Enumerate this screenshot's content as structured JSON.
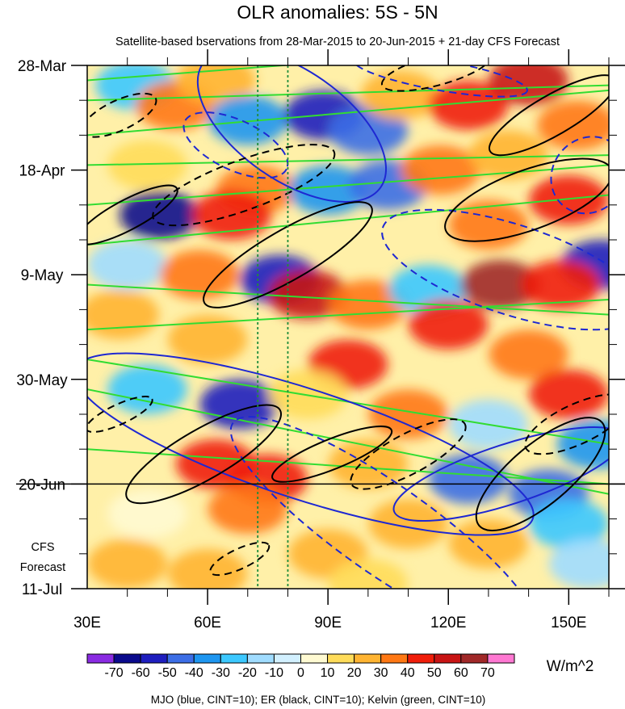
{
  "chart_data": {
    "type": "heatmap",
    "title": "OLR anomalies: 5S - 5N",
    "subtitle": "Satellite-based bservations from 28-Mar-2015 to 20-Jun-2015 + 21-day CFS Forecast",
    "x_ticks": [
      {
        "label": "30E",
        "lon": 30
      },
      {
        "label": "60E",
        "lon": 60
      },
      {
        "label": "90E",
        "lon": 90
      },
      {
        "label": "120E",
        "lon": 120
      },
      {
        "label": "150E",
        "lon": 150
      }
    ],
    "xlim": [
      30,
      160
    ],
    "y_ticks": [
      {
        "label": "28-Mar",
        "day": 0
      },
      {
        "label": "18-Apr",
        "day": 21
      },
      {
        "label": "9-May",
        "day": 42
      },
      {
        "label": "30-May",
        "day": 63
      },
      {
        "label": "20-Jun",
        "day": 84
      },
      {
        "label": "11-Jul",
        "day": 105
      }
    ],
    "ylim_days": [
      0,
      105
    ],
    "observation_end_day": 84,
    "forecast_label": [
      "CFS",
      "Forecast"
    ],
    "reference_longitudes": [
      72.5,
      80
    ],
    "colorbar": {
      "unit_label": "W/m^2",
      "tick_labels": [
        "-70",
        "-60",
        "-50",
        "-40",
        "-30",
        "-20",
        "-10",
        "0",
        "10",
        "20",
        "30",
        "40",
        "50",
        "60",
        "70"
      ],
      "colors": [
        "#8a2be2",
        "#0a0a8c",
        "#1e1ebe",
        "#3c6ee6",
        "#1e96f0",
        "#3cc8ff",
        "#a0dcff",
        "#d2f0ff",
        "#fffad2",
        "#ffdc5a",
        "#ffb432",
        "#ff7814",
        "#f01e0a",
        "#c81414",
        "#a02828",
        "#ff78d2"
      ]
    },
    "legend_text": "MJO (blue, CINT=10); ER (black, CINT=10); Kelvin (green, CINT=10)",
    "colors": {
      "mjo": "#1e28d2",
      "er": "#000000",
      "kelvin": "#32dc32",
      "reference": "#1e8c3c"
    },
    "kelvin_bands": [
      {
        "lon1": 30,
        "day1": 3,
        "lon2": 160,
        "day2": -5
      },
      {
        "lon1": 30,
        "day1": 7,
        "lon2": 160,
        "day2": 4
      },
      {
        "lon1": 30,
        "day1": 14,
        "lon2": 160,
        "day2": 5
      },
      {
        "lon1": 30,
        "day1": 20,
        "lon2": 160,
        "day2": 18
      },
      {
        "lon1": 30,
        "day1": 28,
        "lon2": 160,
        "day2": 20
      },
      {
        "lon1": 30,
        "day1": 36,
        "lon2": 160,
        "day2": 26
      },
      {
        "lon1": 30,
        "day1": 44,
        "lon2": 160,
        "day2": 50
      },
      {
        "lon1": 30,
        "day1": 53,
        "lon2": 160,
        "day2": 47
      },
      {
        "lon1": 30,
        "day1": 59,
        "lon2": 160,
        "day2": 76
      },
      {
        "lon1": 30,
        "day1": 65,
        "lon2": 160,
        "day2": 86
      },
      {
        "lon1": 30,
        "day1": 77,
        "lon2": 160,
        "day2": 84
      }
    ],
    "mjo_contours": [
      {
        "lon": 81,
        "day": 12,
        "rlon": 27,
        "rday": 11,
        "angle": 35,
        "dashed": false
      },
      {
        "lon": 67,
        "day": 16,
        "rlon": 14,
        "rday": 5,
        "angle": 25,
        "dashed": true
      },
      {
        "lon": 84,
        "day": 76,
        "rlon": 60,
        "rday": 11,
        "angle": 18,
        "dashed": false
      },
      {
        "lon": 136,
        "day": 41,
        "rlon": 34,
        "rday": 9,
        "angle": 18,
        "dashed": true
      },
      {
        "lon": 135,
        "day": 82,
        "rlon": 30,
        "rday": 6,
        "angle": -18,
        "dashed": false
      },
      {
        "lon": 104,
        "day": 93,
        "rlon": 46,
        "rday": 9,
        "angle": 35,
        "dashed": true
      },
      {
        "lon": 155,
        "day": 22,
        "rlon": 9,
        "rday": 8,
        "angle": 40,
        "dashed": true
      },
      {
        "lon": 118,
        "day": 2,
        "rlon": 22,
        "rday": 3,
        "angle": 10,
        "dashed": true
      }
    ],
    "er_contours": [
      {
        "lon": 40,
        "day": 30,
        "rlon": 14,
        "rday": 3,
        "angle": -28,
        "dashed": false
      },
      {
        "lon": 80,
        "day": 38,
        "rlon": 24,
        "rday": 5,
        "angle": -30,
        "dashed": false
      },
      {
        "lon": 69,
        "day": 24,
        "rlon": 24,
        "rday": 5,
        "angle": -20,
        "dashed": true
      },
      {
        "lon": 59,
        "day": 78,
        "rlon": 22,
        "rday": 5,
        "angle": -30,
        "dashed": false
      },
      {
        "lon": 140,
        "day": 27,
        "rlon": 22,
        "rday": 6,
        "angle": -20,
        "dashed": false
      },
      {
        "lon": 146,
        "day": 10,
        "rlon": 18,
        "rday": 4,
        "angle": -30,
        "dashed": false
      },
      {
        "lon": 143,
        "day": 82,
        "rlon": 20,
        "rday": 6,
        "angle": -40,
        "dashed": false
      },
      {
        "lon": 91,
        "day": 78,
        "rlon": 16,
        "rday": 3,
        "angle": -22,
        "dashed": false
      },
      {
        "lon": 38,
        "day": 10,
        "rlon": 10,
        "rday": 3,
        "angle": -25,
        "dashed": true
      },
      {
        "lon": 117,
        "day": 1,
        "rlon": 14,
        "rday": 3,
        "angle": -15,
        "dashed": true
      },
      {
        "lon": 68,
        "day": 99,
        "rlon": 8,
        "rday": 2,
        "angle": -25,
        "dashed": true
      },
      {
        "lon": 38,
        "day": 70,
        "rlon": 9,
        "rday": 2,
        "angle": -25,
        "dashed": true
      },
      {
        "lon": 110,
        "day": 78,
        "rlon": 16,
        "rday": 4,
        "angle": -28,
        "dashed": true
      },
      {
        "lon": 152,
        "day": 72,
        "rlon": 14,
        "rday": 4,
        "angle": -25,
        "dashed": true
      }
    ],
    "olr_cells": [
      {
        "lon": 42,
        "day": 4,
        "v": -30
      },
      {
        "lon": 52,
        "day": 8,
        "v": 35
      },
      {
        "lon": 62,
        "day": 3,
        "v": 20
      },
      {
        "lon": 70,
        "day": 11,
        "v": -35
      },
      {
        "lon": 89,
        "day": 10,
        "v": -60
      },
      {
        "lon": 100,
        "day": 13,
        "v": -45
      },
      {
        "lon": 108,
        "day": 6,
        "v": 20
      },
      {
        "lon": 125,
        "day": 8,
        "v": 40
      },
      {
        "lon": 140,
        "day": 3,
        "v": 55
      },
      {
        "lon": 152,
        "day": 12,
        "v": 30
      },
      {
        "lon": 45,
        "day": 20,
        "v": 10
      },
      {
        "lon": 48,
        "day": 30,
        "v": -65
      },
      {
        "lon": 72,
        "day": 25,
        "v": 35
      },
      {
        "lon": 66,
        "day": 30,
        "v": 45
      },
      {
        "lon": 90,
        "day": 25,
        "v": -40
      },
      {
        "lon": 105,
        "day": 24,
        "v": -50
      },
      {
        "lon": 118,
        "day": 21,
        "v": 35
      },
      {
        "lon": 135,
        "day": 18,
        "v": 20
      },
      {
        "lon": 150,
        "day": 27,
        "v": 40
      },
      {
        "lon": 158,
        "day": 40,
        "v": -55
      },
      {
        "lon": 130,
        "day": 32,
        "v": 30
      },
      {
        "lon": 40,
        "day": 40,
        "v": -20
      },
      {
        "lon": 58,
        "day": 42,
        "v": 30
      },
      {
        "lon": 78,
        "day": 43,
        "v": -60
      },
      {
        "lon": 85,
        "day": 46,
        "v": 55
      },
      {
        "lon": 100,
        "day": 48,
        "v": 30
      },
      {
        "lon": 115,
        "day": 45,
        "v": -25
      },
      {
        "lon": 133,
        "day": 44,
        "v": 60
      },
      {
        "lon": 148,
        "day": 44,
        "v": 45
      },
      {
        "lon": 120,
        "day": 52,
        "v": 40
      },
      {
        "lon": 60,
        "day": 55,
        "v": 20
      },
      {
        "lon": 38,
        "day": 50,
        "v": 20
      },
      {
        "lon": 95,
        "day": 60,
        "v": 40
      },
      {
        "lon": 140,
        "day": 58,
        "v": 35
      },
      {
        "lon": 45,
        "day": 65,
        "v": -30
      },
      {
        "lon": 68,
        "day": 68,
        "v": -55
      },
      {
        "lon": 85,
        "day": 66,
        "v": 15
      },
      {
        "lon": 110,
        "day": 70,
        "v": 30
      },
      {
        "lon": 150,
        "day": 66,
        "v": 45
      },
      {
        "lon": 130,
        "day": 72,
        "v": -20
      },
      {
        "lon": 157,
        "day": 76,
        "v": -40
      },
      {
        "lon": 62,
        "day": 80,
        "v": 40
      },
      {
        "lon": 75,
        "day": 83,
        "v": 45
      },
      {
        "lon": 100,
        "day": 80,
        "v": 20
      },
      {
        "lon": 125,
        "day": 83,
        "v": -45
      },
      {
        "lon": 145,
        "day": 86,
        "v": -50
      },
      {
        "lon": 45,
        "day": 90,
        "v": 5
      },
      {
        "lon": 70,
        "day": 89,
        "v": 30
      },
      {
        "lon": 90,
        "day": 98,
        "v": 25
      },
      {
        "lon": 110,
        "day": 92,
        "v": 20
      },
      {
        "lon": 130,
        "day": 96,
        "v": 25
      },
      {
        "lon": 150,
        "day": 92,
        "v": -30
      },
      {
        "lon": 155,
        "day": 100,
        "v": -15
      },
      {
        "lon": 60,
        "day": 102,
        "v": 25
      },
      {
        "lon": 40,
        "day": 100,
        "v": 25
      },
      {
        "lon": 100,
        "day": 104,
        "v": 10
      }
    ]
  }
}
